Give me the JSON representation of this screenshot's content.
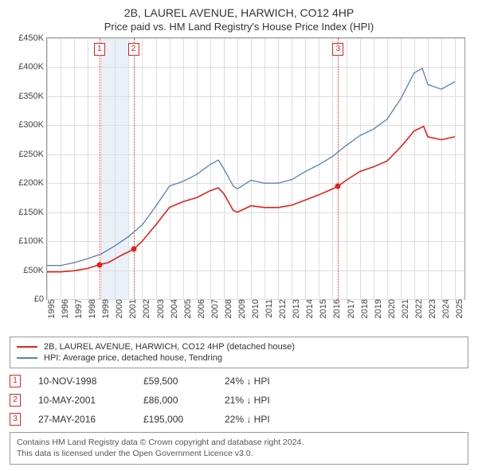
{
  "title": "2B, LAUREL AVENUE, HARWICH, CO12 4HP",
  "subtitle": "Price paid vs. HM Land Registry's House Price Index (HPI)",
  "chart": {
    "xlim": [
      1995,
      2025.7
    ],
    "ylim": [
      0,
      450000
    ],
    "ytick_step": 50000,
    "yticks": [
      "£0",
      "£50K",
      "£100K",
      "£150K",
      "£200K",
      "£250K",
      "£300K",
      "£350K",
      "£400K",
      "£450K"
    ],
    "xticks": [
      1995,
      1996,
      1997,
      1998,
      1999,
      2000,
      2001,
      2002,
      2003,
      2004,
      2005,
      2006,
      2007,
      2008,
      2009,
      2010,
      2011,
      2012,
      2013,
      2014,
      2015,
      2016,
      2017,
      2018,
      2019,
      2020,
      2021,
      2022,
      2023,
      2024,
      2025
    ],
    "grid_color": "#dddddd",
    "band": {
      "start": 1999,
      "end": 2001,
      "color": "#eaf0f7"
    },
    "vlines": [
      1998.86,
      2001.36,
      2016.41
    ],
    "marker_boxes": [
      {
        "x": 1998.86,
        "label": "1"
      },
      {
        "x": 2001.36,
        "label": "2"
      },
      {
        "x": 2016.41,
        "label": "3"
      }
    ],
    "series": [
      {
        "label": "2B, LAUREL AVENUE, HARWICH, CO12 4HP (detached house)",
        "color": "#e3211c",
        "width": 1.6,
        "points": [
          [
            1995,
            47000
          ],
          [
            1996,
            47000
          ],
          [
            1997,
            49000
          ],
          [
            1998,
            53000
          ],
          [
            1998.86,
            59500
          ],
          [
            1999.5,
            63000
          ],
          [
            2000.5,
            76000
          ],
          [
            2001.36,
            86000
          ],
          [
            2002,
            100000
          ],
          [
            2003,
            128000
          ],
          [
            2004,
            158000
          ],
          [
            2005,
            168000
          ],
          [
            2006,
            175000
          ],
          [
            2007,
            187000
          ],
          [
            2007.6,
            192000
          ],
          [
            2008,
            182000
          ],
          [
            2008.7,
            153000
          ],
          [
            2009,
            150000
          ],
          [
            2010,
            161000
          ],
          [
            2011,
            158000
          ],
          [
            2012,
            158000
          ],
          [
            2013,
            162000
          ],
          [
            2014,
            171000
          ],
          [
            2015,
            180000
          ],
          [
            2016,
            190000
          ],
          [
            2016.41,
            195000
          ],
          [
            2017,
            205000
          ],
          [
            2018,
            220000
          ],
          [
            2019,
            228000
          ],
          [
            2020,
            238000
          ],
          [
            2021,
            262000
          ],
          [
            2022,
            290000
          ],
          [
            2022.7,
            298000
          ],
          [
            2023,
            280000
          ],
          [
            2024,
            275000
          ],
          [
            2025,
            280000
          ]
        ],
        "dots": [
          [
            1998.86,
            59500
          ],
          [
            2001.36,
            86000
          ],
          [
            2016.41,
            195000
          ]
        ]
      },
      {
        "label": "HPI: Average price, detached house, Tendring",
        "color": "#5b7fb0",
        "width": 1.3,
        "points": [
          [
            1995,
            58000
          ],
          [
            1996,
            58000
          ],
          [
            1997,
            63000
          ],
          [
            1998,
            70000
          ],
          [
            1999,
            78000
          ],
          [
            2000,
            92000
          ],
          [
            2001,
            108000
          ],
          [
            2002,
            128000
          ],
          [
            2003,
            160000
          ],
          [
            2004,
            195000
          ],
          [
            2005,
            203000
          ],
          [
            2006,
            215000
          ],
          [
            2007,
            232000
          ],
          [
            2007.6,
            240000
          ],
          [
            2008,
            225000
          ],
          [
            2008.7,
            195000
          ],
          [
            2009,
            190000
          ],
          [
            2010,
            205000
          ],
          [
            2011,
            200000
          ],
          [
            2012,
            200000
          ],
          [
            2013,
            206000
          ],
          [
            2014,
            220000
          ],
          [
            2015,
            232000
          ],
          [
            2016,
            246000
          ],
          [
            2017,
            265000
          ],
          [
            2018,
            282000
          ],
          [
            2019,
            293000
          ],
          [
            2020,
            310000
          ],
          [
            2021,
            345000
          ],
          [
            2022,
            390000
          ],
          [
            2022.6,
            398000
          ],
          [
            2023,
            370000
          ],
          [
            2024,
            362000
          ],
          [
            2025,
            375000
          ]
        ]
      }
    ]
  },
  "legend": [
    {
      "color": "#e3211c",
      "text": "2B, LAUREL AVENUE, HARWICH, CO12 4HP (detached house)"
    },
    {
      "color": "#5b7fb0",
      "text": "HPI: Average price, detached house, Tendring"
    }
  ],
  "events": [
    {
      "n": "1",
      "date": "10-NOV-1998",
      "price": "£59,500",
      "pct": "24% ↓ HPI"
    },
    {
      "n": "2",
      "date": "10-MAY-2001",
      "price": "£86,000",
      "pct": "21% ↓ HPI"
    },
    {
      "n": "3",
      "date": "27-MAY-2016",
      "price": "£195,000",
      "pct": "22% ↓ HPI"
    }
  ],
  "license": {
    "line1": "Contains HM Land Registry data © Crown copyright and database right 2024.",
    "line2": "This data is licensed under the Open Government Licence v3.0."
  }
}
